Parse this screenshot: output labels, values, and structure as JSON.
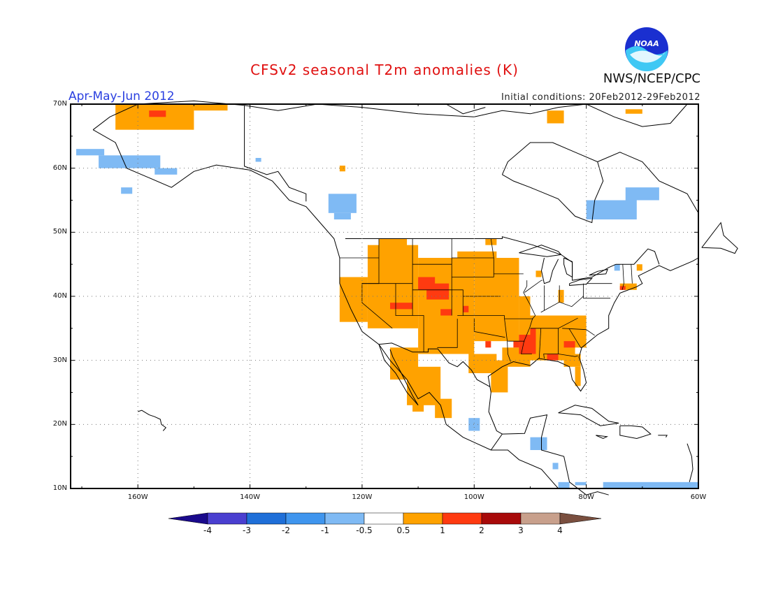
{
  "title": "CFSv2 seasonal T2m anomalies (K)",
  "season": "Apr-May-Jun 2012",
  "initial_conditions": "Initial conditions: 20Feb2012-29Feb2012",
  "agency": "NWS/NCEP/CPC",
  "logo_text": "NOAA",
  "lat_labels": [
    "70N",
    "60N",
    "50N",
    "40N",
    "30N",
    "20N",
    "10N"
  ],
  "lon_labels": [
    "160W",
    "140W",
    "120W",
    "100W",
    "80W",
    "60W"
  ],
  "colorbar": {
    "labels": [
      "-4",
      "-3",
      "-2",
      "-1",
      "-0.5",
      "0.5",
      "1",
      "2",
      "3",
      "4"
    ],
    "colors": [
      "#1a0a8c",
      "#4a3fd0",
      "#1f6fd8",
      "#3f95ee",
      "#7fbaf4",
      "#ffffff",
      "#ffa200",
      "#ff3a10",
      "#a80a0a",
      "#c8a08c",
      "#7a4f3f"
    ]
  },
  "map": {
    "lon_range": [
      -172,
      -60
    ],
    "lat_range": [
      10,
      70
    ],
    "colors": {
      "warm1": "#ffa200",
      "warm2": "#ff3a10",
      "cool1": "#7fbaf4",
      "coast": "#000000"
    }
  }
}
